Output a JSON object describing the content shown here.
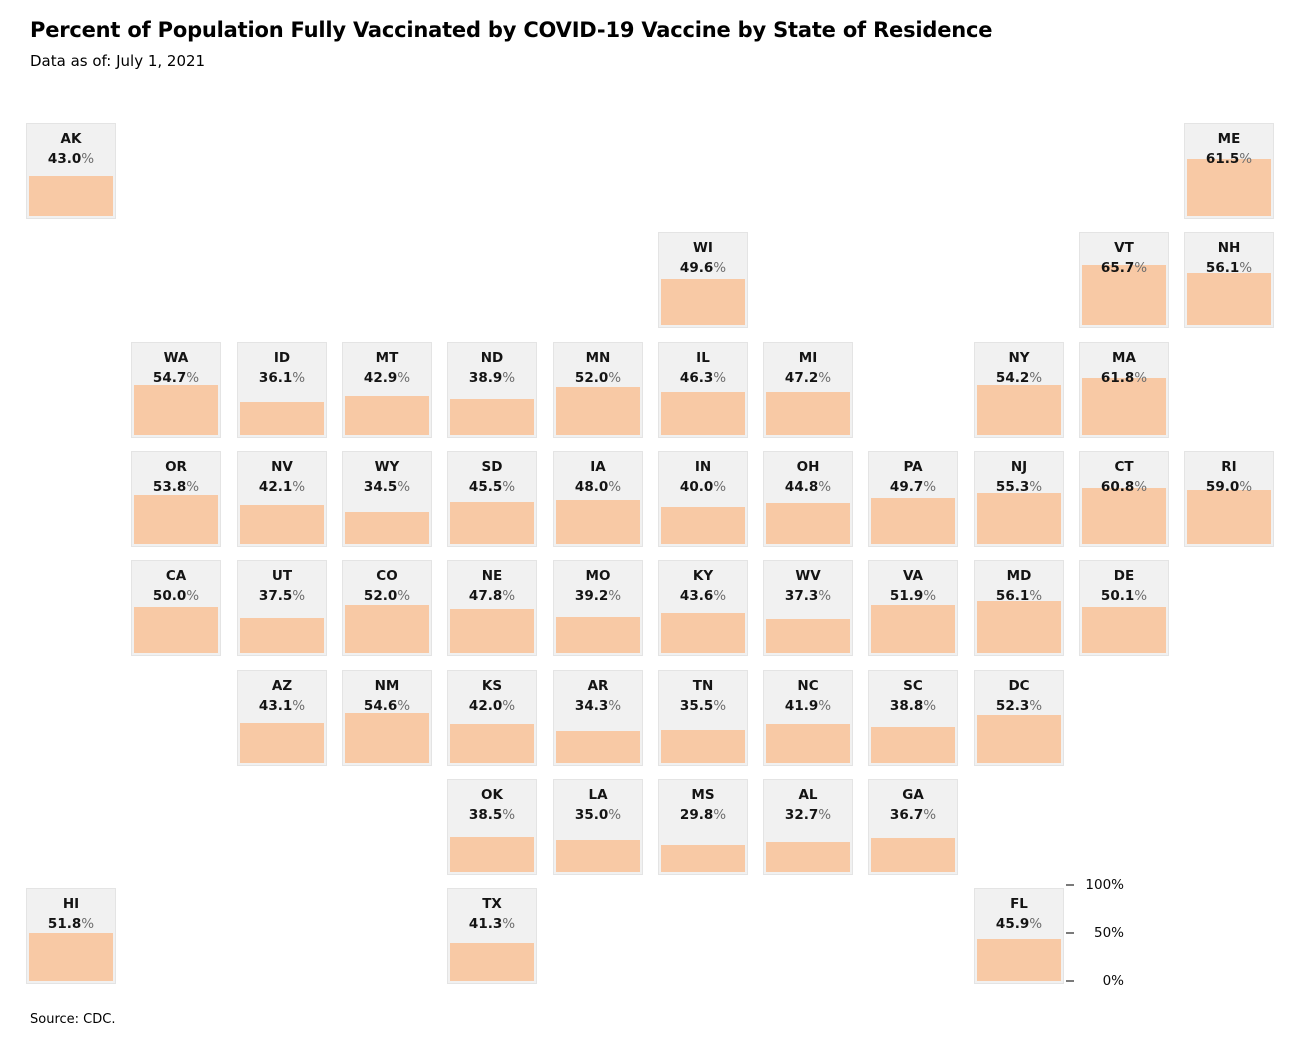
{
  "title": "Percent of Population Fully Vaccinated by COVID-19 Vaccine by State of Residence",
  "subtitle": "Data as of: July 1, 2021",
  "source": "Source: CDC.",
  "colors": {
    "bar_fill": "#f8c9a5",
    "tile_background": "#f1f1f1",
    "tile_border": "#e4e4e4",
    "percent_sign_gray": "#6e6e6e"
  },
  "legend": {
    "ticks": [
      "100%",
      "50%",
      "0%"
    ]
  },
  "chart_data": {
    "type": "bar",
    "layout": "us-state-tile-grid",
    "title": "Percent of Population Fully Vaccinated by COVID-19 Vaccine by State of Residence",
    "subtitle": "Data as of: July 1, 2021",
    "unit": "%",
    "ylim": [
      0,
      100
    ],
    "legend_position": "bottom-right",
    "states": [
      {
        "abbr": "AK",
        "label": "43.0",
        "value": 43.0,
        "row": 1,
        "col": 1
      },
      {
        "abbr": "ME",
        "label": "61.5",
        "value": 61.5,
        "row": 1,
        "col": 12
      },
      {
        "abbr": "WI",
        "label": "49.6",
        "value": 49.6,
        "row": 2,
        "col": 7
      },
      {
        "abbr": "VT",
        "label": "65.7",
        "value": 65.7,
        "row": 2,
        "col": 11
      },
      {
        "abbr": "NH",
        "label": "56.1",
        "value": 56.1,
        "row": 2,
        "col": 12
      },
      {
        "abbr": "WA",
        "label": "54.7",
        "value": 54.7,
        "row": 3,
        "col": 2
      },
      {
        "abbr": "ID",
        "label": "36.1",
        "value": 36.1,
        "row": 3,
        "col": 3
      },
      {
        "abbr": "MT",
        "label": "42.9",
        "value": 42.9,
        "row": 3,
        "col": 4
      },
      {
        "abbr": "ND",
        "label": "38.9",
        "value": 38.9,
        "row": 3,
        "col": 5
      },
      {
        "abbr": "MN",
        "label": "52.0",
        "value": 52.0,
        "row": 3,
        "col": 6
      },
      {
        "abbr": "IL",
        "label": "46.3",
        "value": 46.3,
        "row": 3,
        "col": 7
      },
      {
        "abbr": "MI",
        "label": "47.2",
        "value": 47.2,
        "row": 3,
        "col": 8
      },
      {
        "abbr": "NY",
        "label": "54.2",
        "value": 54.2,
        "row": 3,
        "col": 10
      },
      {
        "abbr": "MA",
        "label": "61.8",
        "value": 61.8,
        "row": 3,
        "col": 11
      },
      {
        "abbr": "OR",
        "label": "53.8",
        "value": 53.8,
        "row": 4,
        "col": 2
      },
      {
        "abbr": "NV",
        "label": "42.1",
        "value": 42.1,
        "row": 4,
        "col": 3
      },
      {
        "abbr": "WY",
        "label": "34.5",
        "value": 34.5,
        "row": 4,
        "col": 4
      },
      {
        "abbr": "SD",
        "label": "45.5",
        "value": 45.5,
        "row": 4,
        "col": 5
      },
      {
        "abbr": "IA",
        "label": "48.0",
        "value": 48.0,
        "row": 4,
        "col": 6
      },
      {
        "abbr": "IN",
        "label": "40.0",
        "value": 40.0,
        "row": 4,
        "col": 7
      },
      {
        "abbr": "OH",
        "label": "44.8",
        "value": 44.8,
        "row": 4,
        "col": 8
      },
      {
        "abbr": "PA",
        "label": "49.7",
        "value": 49.7,
        "row": 4,
        "col": 9
      },
      {
        "abbr": "NJ",
        "label": "55.3",
        "value": 55.3,
        "row": 4,
        "col": 10
      },
      {
        "abbr": "CT",
        "label": "60.8",
        "value": 60.8,
        "row": 4,
        "col": 11
      },
      {
        "abbr": "RI",
        "label": "59.0",
        "value": 59.0,
        "row": 4,
        "col": 12
      },
      {
        "abbr": "CA",
        "label": "50.0",
        "value": 50.0,
        "row": 5,
        "col": 2
      },
      {
        "abbr": "UT",
        "label": "37.5",
        "value": 37.5,
        "row": 5,
        "col": 3
      },
      {
        "abbr": "CO",
        "label": "52.0",
        "value": 52.0,
        "row": 5,
        "col": 4
      },
      {
        "abbr": "NE",
        "label": "47.8",
        "value": 47.8,
        "row": 5,
        "col": 5
      },
      {
        "abbr": "MO",
        "label": "39.2",
        "value": 39.2,
        "row": 5,
        "col": 6
      },
      {
        "abbr": "KY",
        "label": "43.6",
        "value": 43.6,
        "row": 5,
        "col": 7
      },
      {
        "abbr": "WV",
        "label": "37.3",
        "value": 37.3,
        "row": 5,
        "col": 8
      },
      {
        "abbr": "VA",
        "label": "51.9",
        "value": 51.9,
        "row": 5,
        "col": 9
      },
      {
        "abbr": "MD",
        "label": "56.1",
        "value": 56.1,
        "row": 5,
        "col": 10
      },
      {
        "abbr": "DE",
        "label": "50.1",
        "value": 50.1,
        "row": 5,
        "col": 11
      },
      {
        "abbr": "AZ",
        "label": "43.1",
        "value": 43.1,
        "row": 6,
        "col": 3
      },
      {
        "abbr": "NM",
        "label": "54.6",
        "value": 54.6,
        "row": 6,
        "col": 4
      },
      {
        "abbr": "KS",
        "label": "42.0",
        "value": 42.0,
        "row": 6,
        "col": 5
      },
      {
        "abbr": "AR",
        "label": "34.3",
        "value": 34.3,
        "row": 6,
        "col": 6
      },
      {
        "abbr": "TN",
        "label": "35.5",
        "value": 35.5,
        "row": 6,
        "col": 7
      },
      {
        "abbr": "NC",
        "label": "41.9",
        "value": 41.9,
        "row": 6,
        "col": 8
      },
      {
        "abbr": "SC",
        "label": "38.8",
        "value": 38.8,
        "row": 6,
        "col": 9
      },
      {
        "abbr": "DC",
        "label": "52.3",
        "value": 52.3,
        "row": 6,
        "col": 10
      },
      {
        "abbr": "OK",
        "label": "38.5",
        "value": 38.5,
        "row": 7,
        "col": 5
      },
      {
        "abbr": "LA",
        "label": "35.0",
        "value": 35.0,
        "row": 7,
        "col": 6
      },
      {
        "abbr": "MS",
        "label": "29.8",
        "value": 29.8,
        "row": 7,
        "col": 7
      },
      {
        "abbr": "AL",
        "label": "32.7",
        "value": 32.7,
        "row": 7,
        "col": 8
      },
      {
        "abbr": "GA",
        "label": "36.7",
        "value": 36.7,
        "row": 7,
        "col": 9
      },
      {
        "abbr": "HI",
        "label": "51.8",
        "value": 51.8,
        "row": 8,
        "col": 1
      },
      {
        "abbr": "TX",
        "label": "41.3",
        "value": 41.3,
        "row": 8,
        "col": 5
      },
      {
        "abbr": "FL",
        "label": "45.9",
        "value": 45.9,
        "row": 8,
        "col": 10
      }
    ]
  }
}
